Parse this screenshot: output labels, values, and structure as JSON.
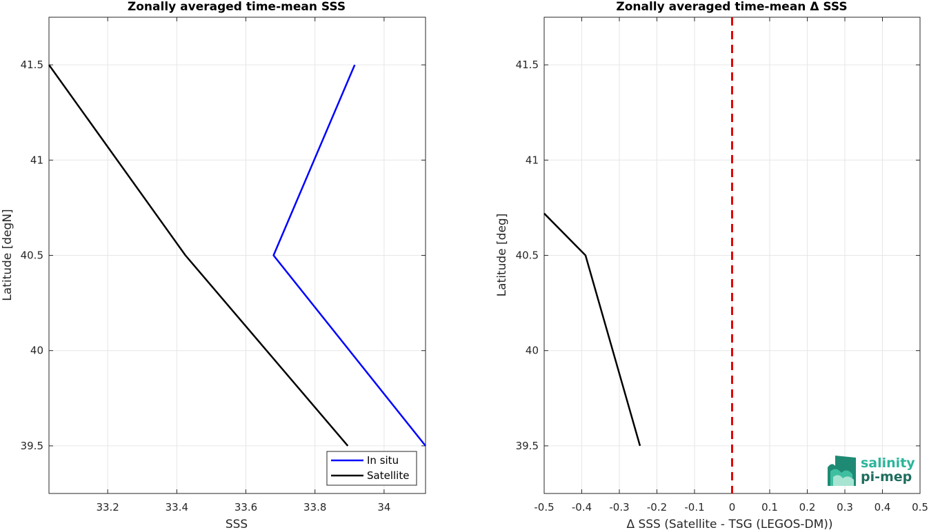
{
  "chart_data": [
    {
      "type": "line",
      "title": "Zonally averaged time-mean SSS",
      "xlabel": "SSS",
      "ylabel": "Latitude [degN]",
      "xlim": [
        33.03,
        34.12
      ],
      "ylim": [
        39.25,
        41.75
      ],
      "xticks": [
        33.2,
        33.4,
        33.6,
        33.8,
        34
      ],
      "xtick_labels": [
        "33.2",
        "33.4",
        "33.6",
        "33.8",
        "34"
      ],
      "yticks": [
        39.5,
        40,
        40.5,
        41,
        41.5
      ],
      "ytick_labels": [
        "39.5",
        "40",
        "40.5",
        "41",
        "41.5"
      ],
      "grid": true,
      "legend_position": "bottom-right",
      "series": [
        {
          "name": "In situ",
          "color": "#0000ff",
          "x": [
            34.12,
            33.68,
            33.915
          ],
          "y": [
            39.5,
            40.5,
            41.5
          ]
        },
        {
          "name": "Satellite",
          "color": "#000000",
          "x": [
            33.895,
            33.425,
            33.03
          ],
          "y": [
            39.5,
            40.5,
            41.5
          ]
        }
      ]
    },
    {
      "type": "line",
      "title": "Zonally averaged time-mean Δ SSS",
      "xlabel": "Δ SSS (Satellite - TSG (LEGOS-DM))",
      "ylabel": "Latitude [deg]",
      "xlim": [
        -0.5,
        0.5
      ],
      "ylim": [
        39.25,
        41.75
      ],
      "xticks": [
        -0.5,
        -0.4,
        -0.3,
        -0.2,
        -0.1,
        0,
        0.1,
        0.2,
        0.3,
        0.4,
        0.5
      ],
      "xtick_labels": [
        "-0.5",
        "-0.4",
        "-0.3",
        "-0.2",
        "-0.1",
        "0",
        "0.1",
        "0.2",
        "0.3",
        "0.4",
        "0.5"
      ],
      "yticks": [
        39.5,
        40,
        40.5,
        41,
        41.5
      ],
      "ytick_labels": [
        "39.5",
        "40",
        "40.5",
        "41",
        "41.5"
      ],
      "grid": true,
      "reference_line": {
        "x": 0,
        "color": "#e00000",
        "style": "dashed"
      },
      "series": [
        {
          "color": "#000000",
          "x": [
            -0.245,
            -0.39,
            -0.5
          ],
          "y": [
            39.5,
            40.5,
            40.72
          ]
        }
      ]
    }
  ],
  "logo": {
    "line1": "salinity",
    "line2": "pi-mep",
    "color1": "#2bb59a",
    "color2": "#1e6d5e"
  }
}
